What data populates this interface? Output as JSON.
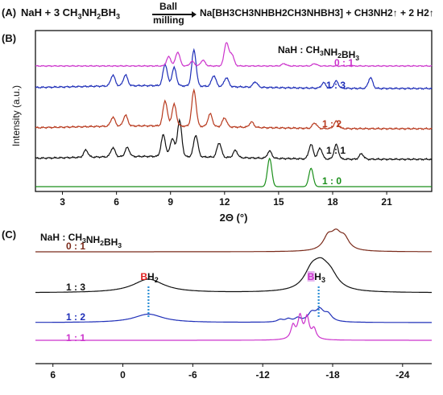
{
  "colors": {
    "pink": "#cc33cc",
    "blue": "#1f2fb8",
    "red": "#b83a1e",
    "black": "#111111",
    "green": "#1a8f1a",
    "brown": "#7a2a1a",
    "bold_red": "#e02020",
    "bold_pink": "#cc33cc",
    "dotted": "#2b8fd6"
  },
  "panel_a": {
    "label": "(A)",
    "reactant1": "NaH + 3 CH",
    "reactant1_sub": "3",
    "reactant2": "NH",
    "reactant2_sub": "2",
    "reactant3": "BH",
    "reactant3_sub": "3",
    "arrow_top": "Ball",
    "arrow_bottom": "milling",
    "product": "Na[BH3CH3NHBH2CH3NHBH3] + CH3NH2↑ + 2 H2↑"
  },
  "chart_data": [
    {
      "panel": "(B)",
      "type": "line",
      "ylabel": "Intensity (a.u.)",
      "xlabel": "2Θ (°)",
      "xlim": [
        1.5,
        23.5
      ],
      "xticks": [
        3,
        6,
        9,
        12,
        15,
        18,
        21
      ],
      "xtick_labels": [
        "3",
        "6",
        "9",
        "12",
        "15",
        "18",
        "21"
      ],
      "legend_title": "NaH : CH3NH2BH3",
      "series": [
        {
          "name": "0 : 1",
          "color": "#cc33cc",
          "offset": 4,
          "peaks": [
            [
              8.9,
              0.4
            ],
            [
              9.4,
              0.6
            ],
            [
              10.2,
              0.2
            ],
            [
              10.8,
              0.25
            ],
            [
              12.1,
              1.0
            ],
            [
              12.4,
              0.5
            ],
            [
              15.3,
              0.1
            ],
            [
              17.0,
              0.1
            ]
          ]
        },
        {
          "name": "1 : 3",
          "color": "#1f2fb8",
          "offset": 3,
          "peaks": [
            [
              5.8,
              0.3
            ],
            [
              6.5,
              0.3
            ],
            [
              8.7,
              0.6
            ],
            [
              9.2,
              0.5
            ],
            [
              10.3,
              1.0
            ],
            [
              11.4,
              0.3
            ],
            [
              12.1,
              0.25
            ],
            [
              13.7,
              0.15
            ],
            [
              17.5,
              0.15
            ],
            [
              18.2,
              0.2
            ],
            [
              20.1,
              0.3
            ]
          ]
        },
        {
          "name": "1 : 2",
          "color": "#b83a1e",
          "offset": 2,
          "peaks": [
            [
              5.8,
              0.25
            ],
            [
              6.5,
              0.3
            ],
            [
              8.7,
              0.7
            ],
            [
              9.2,
              0.6
            ],
            [
              10.3,
              1.0
            ],
            [
              11.2,
              0.35
            ],
            [
              12.0,
              0.25
            ],
            [
              13.5,
              0.15
            ],
            [
              17.0,
              0.15
            ],
            [
              18.2,
              0.2
            ]
          ]
        },
        {
          "name": "1 : 1",
          "color": "#111111",
          "offset": 1,
          "peaks": [
            [
              4.3,
              0.2
            ],
            [
              5.8,
              0.25
            ],
            [
              6.6,
              0.25
            ],
            [
              8.6,
              0.6
            ],
            [
              9.1,
              0.5
            ],
            [
              9.5,
              1.0
            ],
            [
              10.4,
              0.6
            ],
            [
              11.7,
              0.4
            ],
            [
              12.6,
              0.2
            ],
            [
              14.5,
              0.2
            ],
            [
              16.8,
              0.4
            ],
            [
              17.3,
              0.3
            ],
            [
              18.2,
              0.4
            ],
            [
              19.6,
              0.15
            ]
          ]
        },
        {
          "name": "1 : 0",
          "color": "#1a8f1a",
          "offset": 0,
          "peaks": [
            [
              14.5,
              1.0
            ],
            [
              16.8,
              0.65
            ]
          ]
        }
      ]
    },
    {
      "panel": "(C)",
      "type": "line",
      "xlabel": "",
      "xlim": [
        7.5,
        -26.5
      ],
      "xticks": [
        6,
        0,
        -6,
        -12,
        -18,
        -24
      ],
      "xtick_labels": [
        "6",
        "0",
        "-6",
        "-12",
        "-18",
        "-24"
      ],
      "legend_title": "NaH : CH3NH2BH3",
      "annotations": [
        "BH2",
        "BH3"
      ],
      "annotation_ppm": [
        -2.2,
        -16.8
      ],
      "series": [
        {
          "name": "0 : 1",
          "color": "#7a2a1a",
          "offset": 3,
          "peaks": [
            [
              -17.6,
              0.9,
              0.5
            ],
            [
              -18.3,
              1.0,
              0.5
            ],
            [
              -19.0,
              0.8,
              0.5
            ]
          ]
        },
        {
          "name": "1 : 3",
          "color": "#111111",
          "offset": 2,
          "peaks": [
            [
              -2.2,
              0.6,
              1.6
            ],
            [
              -16.2,
              0.8,
              0.8
            ],
            [
              -17.0,
              0.85,
              0.8
            ],
            [
              -17.8,
              0.6,
              0.8
            ]
          ]
        },
        {
          "name": "1 : 2",
          "color": "#1f2fb8",
          "offset": 1,
          "peaks": [
            [
              -2.2,
              0.35,
              1.5
            ],
            [
              -13.5,
              0.1,
              0.3
            ],
            [
              -14.2,
              0.12,
              0.3
            ],
            [
              -15.0,
              0.15,
              0.3
            ],
            [
              -16.2,
              0.35,
              0.4
            ],
            [
              -16.9,
              0.45,
              0.4
            ],
            [
              -17.6,
              0.3,
              0.4
            ]
          ]
        },
        {
          "name": "1 : 1",
          "color": "#cc33cc",
          "offset": 0,
          "peaks": [
            [
              -14.6,
              0.6,
              0.22
            ],
            [
              -15.2,
              1.0,
              0.22
            ],
            [
              -15.8,
              0.95,
              0.22
            ],
            [
              -16.4,
              0.45,
              0.22
            ]
          ]
        }
      ]
    }
  ]
}
